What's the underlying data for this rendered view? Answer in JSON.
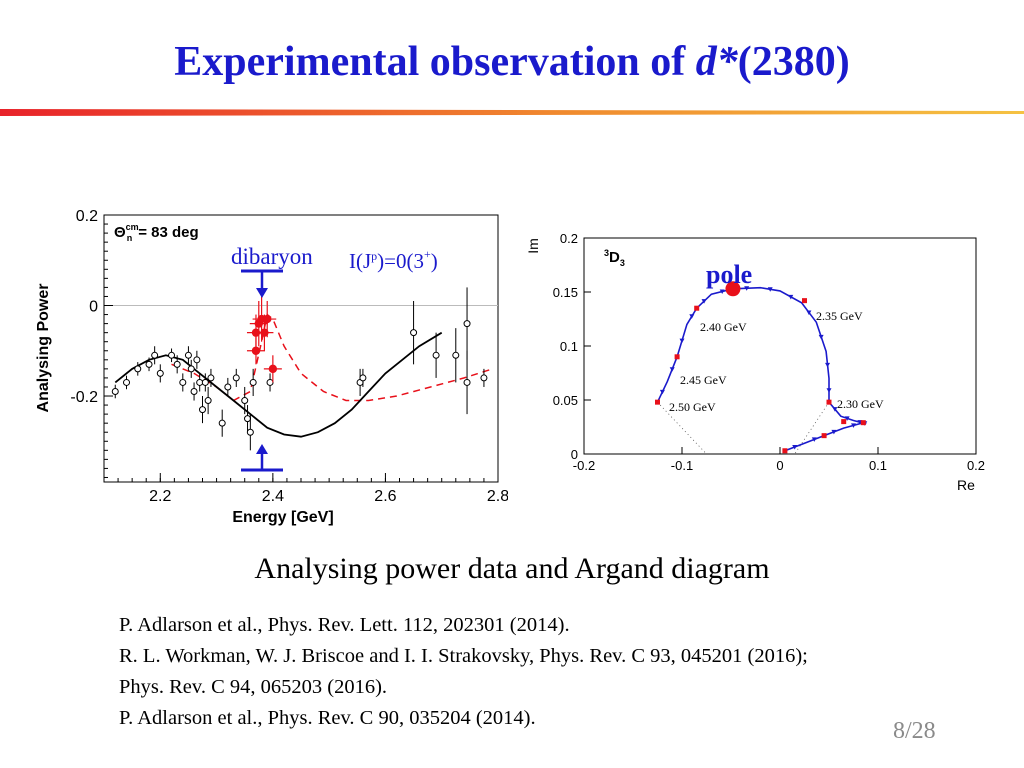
{
  "slide": {
    "title_main": "Experimental observation of ",
    "title_italic": "d*",
    "title_tail": "(2380)",
    "caption": "Analysing power data and Argand diagram",
    "references": [
      "P. Adlarson et al., Phys. Rev. Lett. 112, 202301 (2014).",
      "R. L. Workman, W. J. Briscoe and I. I. Strakovsky, Phys. Rev. C 93, 045201 (2016);",
      "Phys. Rev. C 94, 065203 (2016).",
      "P. Adlarson et al., Phys. Rev. C 90, 035204 (2014)."
    ],
    "page_number": "8/28",
    "colors": {
      "title": "#1a1acc",
      "rule_left": "#e8222a",
      "rule_right": "#f5c242"
    }
  },
  "chart_data": [
    {
      "type": "scatter",
      "xlabel": "Energy [GeV]",
      "ylabel": "Analysing Power",
      "xlim": [
        2.1,
        2.8
      ],
      "ylim": [
        -0.39,
        0.2
      ],
      "xticks": [
        "2.2",
        "2.4",
        "2.6",
        "2.8"
      ],
      "yticks": [
        "0.2",
        "0",
        "-0.2"
      ],
      "header_label": "Θn^cm = 83 deg",
      "annotations": {
        "dibaryon": "dibaryon",
        "quantum_numbers": "I(J^p)=0(3^+)"
      },
      "colors": {
        "data_black": "#000000",
        "data_red": "#e8101a",
        "fit_red": "#e8101a",
        "fit_black": "#000000",
        "marker_blue": "#1a1acc"
      },
      "black_points": [
        {
          "x": 2.12,
          "y": -0.19,
          "e": 0.015
        },
        {
          "x": 2.14,
          "y": -0.17,
          "e": 0.015
        },
        {
          "x": 2.16,
          "y": -0.14,
          "e": 0.015
        },
        {
          "x": 2.18,
          "y": -0.13,
          "e": 0.015
        },
        {
          "x": 2.19,
          "y": -0.11,
          "e": 0.02
        },
        {
          "x": 2.2,
          "y": -0.15,
          "e": 0.02
        },
        {
          "x": 2.22,
          "y": -0.11,
          "e": 0.015
        },
        {
          "x": 2.23,
          "y": -0.13,
          "e": 0.02
        },
        {
          "x": 2.24,
          "y": -0.17,
          "e": 0.02
        },
        {
          "x": 2.25,
          "y": -0.11,
          "e": 0.02
        },
        {
          "x": 2.255,
          "y": -0.14,
          "e": 0.02
        },
        {
          "x": 2.26,
          "y": -0.19,
          "e": 0.02
        },
        {
          "x": 2.265,
          "y": -0.12,
          "e": 0.02
        },
        {
          "x": 2.27,
          "y": -0.17,
          "e": 0.02
        },
        {
          "x": 2.275,
          "y": -0.23,
          "e": 0.03
        },
        {
          "x": 2.28,
          "y": -0.17,
          "e": 0.02
        },
        {
          "x": 2.285,
          "y": -0.21,
          "e": 0.03
        },
        {
          "x": 2.29,
          "y": -0.16,
          "e": 0.02
        },
        {
          "x": 2.31,
          "y": -0.26,
          "e": 0.03
        },
        {
          "x": 2.32,
          "y": -0.18,
          "e": 0.02
        },
        {
          "x": 2.335,
          "y": -0.16,
          "e": 0.02
        },
        {
          "x": 2.35,
          "y": -0.21,
          "e": 0.03
        },
        {
          "x": 2.355,
          "y": -0.25,
          "e": 0.03
        },
        {
          "x": 2.36,
          "y": -0.28,
          "e": 0.04
        },
        {
          "x": 2.365,
          "y": -0.17,
          "e": 0.03
        },
        {
          "x": 2.395,
          "y": -0.17,
          "e": 0.02
        },
        {
          "x": 2.555,
          "y": -0.17,
          "e": 0.03
        },
        {
          "x": 2.56,
          "y": -0.16,
          "e": 0.02
        },
        {
          "x": 2.65,
          "y": -0.06,
          "e": 0.07
        },
        {
          "x": 2.69,
          "y": -0.11,
          "e": 0.05
        },
        {
          "x": 2.725,
          "y": -0.11,
          "e": 0.06
        },
        {
          "x": 2.745,
          "y": -0.04,
          "e": 0.08
        },
        {
          "x": 2.745,
          "y": -0.17,
          "e": 0.07
        },
        {
          "x": 2.775,
          "y": -0.16,
          "e": 0.02
        }
      ],
      "red_points": [
        {
          "x": 2.37,
          "y": -0.06,
          "e": 0.04
        },
        {
          "x": 2.375,
          "y": -0.04,
          "e": 0.05
        },
        {
          "x": 2.38,
          "y": -0.03,
          "e": 0.05
        },
        {
          "x": 2.385,
          "y": -0.06,
          "e": 0.04
        },
        {
          "x": 2.39,
          "y": -0.03,
          "e": 0.04
        },
        {
          "x": 2.37,
          "y": -0.1,
          "e": 0.03
        },
        {
          "x": 2.4,
          "y": -0.14,
          "e": 0.03
        }
      ],
      "fit_black": [
        [
          2.12,
          -0.17
        ],
        [
          2.15,
          -0.14
        ],
        [
          2.18,
          -0.12
        ],
        [
          2.21,
          -0.11
        ],
        [
          2.24,
          -0.12
        ],
        [
          2.27,
          -0.15
        ],
        [
          2.3,
          -0.18
        ],
        [
          2.33,
          -0.21
        ],
        [
          2.36,
          -0.24
        ],
        [
          2.39,
          -0.27
        ],
        [
          2.42,
          -0.285
        ],
        [
          2.45,
          -0.29
        ],
        [
          2.48,
          -0.28
        ],
        [
          2.51,
          -0.26
        ],
        [
          2.54,
          -0.23
        ],
        [
          2.57,
          -0.19
        ],
        [
          2.6,
          -0.15
        ],
        [
          2.63,
          -0.12
        ],
        [
          2.66,
          -0.09
        ],
        [
          2.7,
          -0.06
        ]
      ],
      "fit_red": [
        [
          2.22,
          -0.13
        ],
        [
          2.26,
          -0.15
        ],
        [
          2.3,
          -0.18
        ],
        [
          2.33,
          -0.21
        ],
        [
          2.36,
          -0.19
        ],
        [
          2.38,
          -0.08
        ],
        [
          2.39,
          -0.02
        ],
        [
          2.4,
          -0.03
        ],
        [
          2.42,
          -0.09
        ],
        [
          2.45,
          -0.15
        ],
        [
          2.49,
          -0.19
        ],
        [
          2.53,
          -0.21
        ],
        [
          2.57,
          -0.21
        ],
        [
          2.62,
          -0.2
        ],
        [
          2.68,
          -0.18
        ],
        [
          2.74,
          -0.16
        ],
        [
          2.79,
          -0.14
        ]
      ]
    },
    {
      "type": "line",
      "xlabel": "Re",
      "ylabel": "Im",
      "partial_wave": "3D3",
      "xlim": [
        -0.2,
        0.2
      ],
      "ylim": [
        0,
        0.2
      ],
      "xticks": [
        "-0.2",
        "-0.1",
        "0",
        "0.1",
        "0.2"
      ],
      "yticks": [
        "0",
        "0.05",
        "0.1",
        "0.15",
        "0.2"
      ],
      "annotations": {
        "pole": "pole",
        "e235": "2.35 GeV",
        "e240": "2.40 GeV",
        "e245": "2.45 GeV",
        "e250": "2.50 GeV",
        "e230": "2.30 GeV"
      },
      "pole_point": {
        "x": -0.048,
        "y": 0.153
      },
      "colors": {
        "curve": "#1a1acc",
        "markers": "#e8101a",
        "pole": "#e8101a",
        "pole_label": "#1a1acc"
      },
      "argand_curve": [
        [
          0.005,
          0.003
        ],
        [
          0.025,
          0.01
        ],
        [
          0.045,
          0.017
        ],
        [
          0.065,
          0.024
        ],
        [
          0.085,
          0.029
        ],
        [
          0.088,
          0.028
        ],
        [
          0.075,
          0.031
        ],
        [
          0.062,
          0.035
        ],
        [
          0.05,
          0.048
        ],
        [
          0.05,
          0.07
        ],
        [
          0.047,
          0.095
        ],
        [
          0.037,
          0.122
        ],
        [
          0.022,
          0.14
        ],
        [
          0.0,
          0.151
        ],
        [
          -0.02,
          0.154
        ],
        [
          -0.048,
          0.153
        ],
        [
          -0.07,
          0.148
        ],
        [
          -0.085,
          0.135
        ],
        [
          -0.095,
          0.12
        ],
        [
          -0.105,
          0.09
        ],
        [
          -0.115,
          0.067
        ],
        [
          -0.125,
          0.048
        ]
      ],
      "red_markers": [
        [
          0.005,
          0.003
        ],
        [
          0.045,
          0.017
        ],
        [
          0.085,
          0.029
        ],
        [
          0.065,
          0.03
        ],
        [
          0.05,
          0.048
        ],
        [
          0.025,
          0.142
        ],
        [
          -0.085,
          0.135
        ],
        [
          -0.105,
          0.09
        ],
        [
          -0.125,
          0.048
        ]
      ]
    }
  ]
}
